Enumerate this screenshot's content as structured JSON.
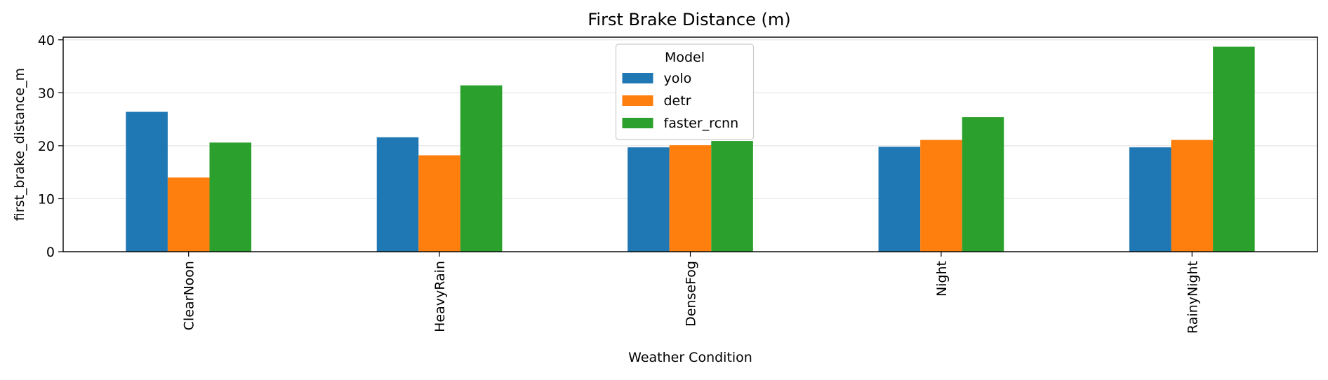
{
  "chart_data": {
    "type": "bar",
    "title": "First Brake Distance (m)",
    "xlabel": "Weather Condition",
    "ylabel": "first_brake_distance_m",
    "categories": [
      "ClearNoon",
      "HeavyRain",
      "DenseFog",
      "Night",
      "RainyNight"
    ],
    "series": [
      {
        "name": "yolo",
        "color": "#1f77b4",
        "values": [
          26.4,
          21.6,
          19.7,
          19.8,
          19.7
        ]
      },
      {
        "name": "detr",
        "color": "#ff7f0e",
        "values": [
          14.0,
          18.2,
          20.1,
          21.1,
          21.1
        ]
      },
      {
        "name": "faster_rcnn",
        "color": "#2ca02c",
        "values": [
          20.6,
          31.4,
          20.9,
          25.4,
          38.7
        ]
      }
    ],
    "ylim": [
      0,
      40.5
    ],
    "yticks": [
      0,
      10,
      20,
      30,
      40
    ],
    "grid": "y",
    "legend": {
      "title": "Model",
      "placement": "upper center"
    }
  }
}
